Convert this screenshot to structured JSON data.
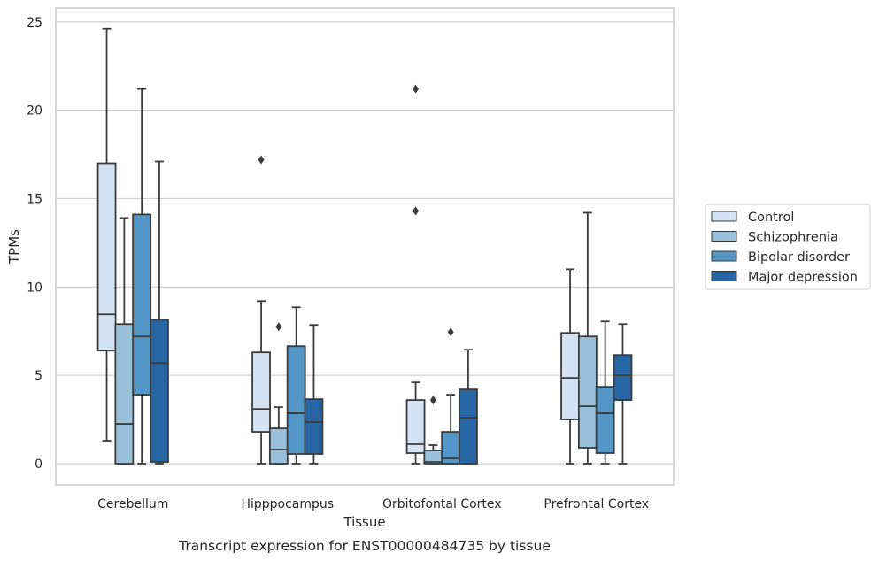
{
  "chart_data": {
    "type": "boxplot",
    "caption": "Transcript expression for ENST00000484735 by tissue",
    "xlabel": "Tissue",
    "ylabel": "TPMs",
    "ylim": [
      -1.2,
      25.8
    ],
    "yticks": [
      0,
      5,
      10,
      15,
      20,
      25
    ],
    "grid": true,
    "legend_position": "right",
    "categories": [
      "Cerebellum",
      "Hipppocampus",
      "Orbitofontal Cortex",
      "Prefrontal Cortex"
    ],
    "series": [
      {
        "name": "Control",
        "color": "#d4e3f3",
        "boxes": [
          {
            "whislo": 1.3,
            "q1": 6.4,
            "med": 8.45,
            "q3": 17.0,
            "whishi": 24.6,
            "fliers": []
          },
          {
            "whislo": 0.0,
            "q1": 1.8,
            "med": 3.1,
            "q3": 6.3,
            "whishi": 9.2,
            "fliers": [
              17.2
            ]
          },
          {
            "whislo": 0.0,
            "q1": 0.6,
            "med": 1.1,
            "q3": 3.6,
            "whishi": 4.6,
            "fliers": [
              14.3,
              21.2
            ]
          },
          {
            "whislo": 0.0,
            "q1": 2.5,
            "med": 4.85,
            "q3": 7.4,
            "whishi": 11.0,
            "fliers": []
          }
        ]
      },
      {
        "name": "Schizophrenia",
        "color": "#9ac1dc",
        "boxes": [
          {
            "whislo": 0.0,
            "q1": 0.0,
            "med": 2.25,
            "q3": 7.9,
            "whishi": 13.9,
            "fliers": []
          },
          {
            "whislo": 0.0,
            "q1": 0.0,
            "med": 0.8,
            "q3": 2.0,
            "whishi": 3.2,
            "fliers": [
              7.75
            ]
          },
          {
            "whislo": 0.0,
            "q1": 0.0,
            "med": 0.1,
            "q3": 0.75,
            "whishi": 1.05,
            "fliers": [
              3.6
            ]
          },
          {
            "whislo": 0.0,
            "q1": 0.9,
            "med": 3.25,
            "q3": 7.2,
            "whishi": 14.2,
            "fliers": []
          }
        ]
      },
      {
        "name": "Bipolar disorder",
        "color": "#5496c6",
        "boxes": [
          {
            "whislo": 0.0,
            "q1": 3.9,
            "med": 7.2,
            "q3": 14.1,
            "whishi": 21.2,
            "fliers": []
          },
          {
            "whislo": 0.0,
            "q1": 0.55,
            "med": 2.85,
            "q3": 6.65,
            "whishi": 8.85,
            "fliers": []
          },
          {
            "whislo": 0.0,
            "q1": 0.0,
            "med": 0.3,
            "q3": 1.8,
            "whishi": 3.9,
            "fliers": [
              7.45
            ]
          },
          {
            "whislo": 0.0,
            "q1": 0.6,
            "med": 2.85,
            "q3": 4.35,
            "whishi": 8.05,
            "fliers": []
          }
        ]
      },
      {
        "name": "Major depression",
        "color": "#2865a5",
        "boxes": [
          {
            "whislo": 0.0,
            "q1": 0.1,
            "med": 5.7,
            "q3": 8.15,
            "whishi": 17.1,
            "fliers": []
          },
          {
            "whislo": 0.0,
            "q1": 0.55,
            "med": 2.35,
            "q3": 3.65,
            "whishi": 7.85,
            "fliers": []
          },
          {
            "whislo": 0.0,
            "q1": 0.0,
            "med": 2.6,
            "q3": 4.2,
            "whishi": 6.45,
            "fliers": []
          },
          {
            "whislo": 0.0,
            "q1": 3.6,
            "med": 5.0,
            "q3": 6.15,
            "whishi": 7.9,
            "fliers": []
          }
        ]
      }
    ]
  }
}
